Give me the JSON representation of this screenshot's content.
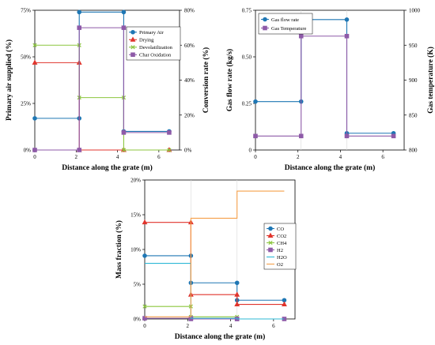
{
  "chart_data": [
    {
      "type": "line",
      "xlabel": "Distance along the grate (m)",
      "ylabel_left": "Primary air supplied (%)",
      "ylabel_right": "Conversion rate (%)",
      "xlim": [
        0,
        7
      ],
      "ylim_left": [
        0,
        75
      ],
      "ylim_right": [
        0,
        80
      ],
      "x_ticks": [
        "0",
        "2",
        "4",
        "6"
      ],
      "y_ticks_left": [
        "0%",
        "25%",
        "50%",
        "75%"
      ],
      "y_ticks_right": [
        "0%",
        "20%",
        "40%",
        "60%",
        "80%"
      ],
      "legend_position": "top-right",
      "series": [
        {
          "name": "Primary Air",
          "axis": "left",
          "color": "#1f77b4",
          "marker": "circle",
          "x": [
            0,
            2.15,
            2.15,
            4.3,
            4.3,
            6.5
          ],
          "y": [
            17,
            17,
            74,
            74,
            10,
            10
          ]
        },
        {
          "name": "Drying",
          "axis": "right",
          "color": "#e0342c",
          "marker": "triangle",
          "x": [
            0,
            2.15,
            2.15,
            4.3,
            4.3,
            6.5
          ],
          "y": [
            50,
            50,
            0,
            0,
            0,
            0
          ]
        },
        {
          "name": "Devolatilization",
          "axis": "right",
          "color": "#8cc63f",
          "marker": "x",
          "x": [
            0,
            2.15,
            2.15,
            4.3,
            4.3,
            6.5
          ],
          "y": [
            60,
            60,
            30,
            30,
            0,
            0
          ]
        },
        {
          "name": "Char Oxidation",
          "axis": "right",
          "color": "#8e5aa8",
          "marker": "square",
          "x": [
            0,
            2.15,
            2.15,
            4.3,
            4.3,
            6.5
          ],
          "y": [
            0,
            0,
            70,
            70,
            10,
            10
          ]
        }
      ]
    },
    {
      "type": "line",
      "xlabel": "Distance along the grate (m)",
      "ylabel_left": "Gas flow rate (kg/s)",
      "ylabel_right": "Gas temperature (K)",
      "xlim": [
        0,
        7
      ],
      "ylim_left": [
        0,
        0.75
      ],
      "ylim_right": [
        800,
        1000
      ],
      "x_ticks": [
        "0",
        "2",
        "4",
        "6"
      ],
      "y_ticks_left": [
        "0",
        "0.25",
        "0.50",
        "0.75"
      ],
      "y_ticks_right": [
        "800",
        "850",
        "900",
        "950",
        "1000"
      ],
      "legend_position": "top-left",
      "series": [
        {
          "name": "Gas flow rate",
          "axis": "left",
          "color": "#1f77b4",
          "marker": "circle",
          "x": [
            0,
            2.15,
            2.15,
            4.3,
            4.3,
            6.5
          ],
          "y": [
            0.26,
            0.26,
            0.7,
            0.7,
            0.09,
            0.09
          ]
        },
        {
          "name": "Gas Temperature",
          "axis": "right",
          "color": "#8e5aa8",
          "marker": "square",
          "x": [
            0,
            2.15,
            2.15,
            4.3,
            4.3,
            6.5
          ],
          "y": [
            820,
            820,
            963,
            963,
            820,
            820
          ]
        }
      ]
    },
    {
      "type": "line",
      "xlabel": "Distance along the grate (m)",
      "ylabel_left": "Mass fraction (%)",
      "xlim": [
        0,
        7
      ],
      "ylim_left": [
        0,
        20
      ],
      "x_ticks": [
        "0",
        "2",
        "4",
        "6"
      ],
      "y_ticks_left": [
        "0%",
        "5%",
        "10%",
        "15%",
        "20%"
      ],
      "legend_position": "right",
      "series": [
        {
          "name": "CO",
          "axis": "left",
          "color": "#1f77b4",
          "marker": "circle",
          "x": [
            0,
            2.15,
            2.15,
            4.3,
            4.3,
            6.5
          ],
          "y": [
            9.1,
            9.1,
            5.2,
            5.2,
            2.7,
            2.7
          ]
        },
        {
          "name": "CO2",
          "axis": "left",
          "color": "#e0342c",
          "marker": "triangle",
          "x": [
            0,
            2.15,
            2.15,
            4.3,
            4.3,
            6.5
          ],
          "y": [
            13.9,
            13.9,
            3.5,
            3.5,
            2.1,
            2.1
          ]
        },
        {
          "name": "CH4",
          "axis": "left",
          "color": "#8cc63f",
          "marker": "x",
          "x": [
            0,
            2.15,
            2.15,
            4.3,
            4.3,
            6.5
          ],
          "y": [
            1.8,
            1.8,
            0.3,
            0.3,
            0,
            0
          ]
        },
        {
          "name": "H2",
          "axis": "left",
          "color": "#8e5aa8",
          "marker": "square",
          "x": [
            0,
            2.15,
            2.15,
            4.3,
            4.3,
            6.5
          ],
          "y": [
            0.1,
            0.1,
            0,
            0,
            0,
            0
          ]
        },
        {
          "name": "H2O",
          "axis": "left",
          "color": "#2eb8d6",
          "marker": "none",
          "x": [
            0,
            2.15,
            2.15,
            4.3,
            4.3,
            6.5
          ],
          "y": [
            8.0,
            8.0,
            0.1,
            0.1,
            0,
            0
          ]
        },
        {
          "name": "O2",
          "axis": "left",
          "color": "#f5a04a",
          "marker": "none",
          "x": [
            0,
            2.15,
            2.15,
            4.3,
            4.3,
            6.5
          ],
          "y": [
            0.3,
            0.3,
            14.5,
            14.5,
            18.4,
            18.4
          ]
        }
      ]
    }
  ]
}
